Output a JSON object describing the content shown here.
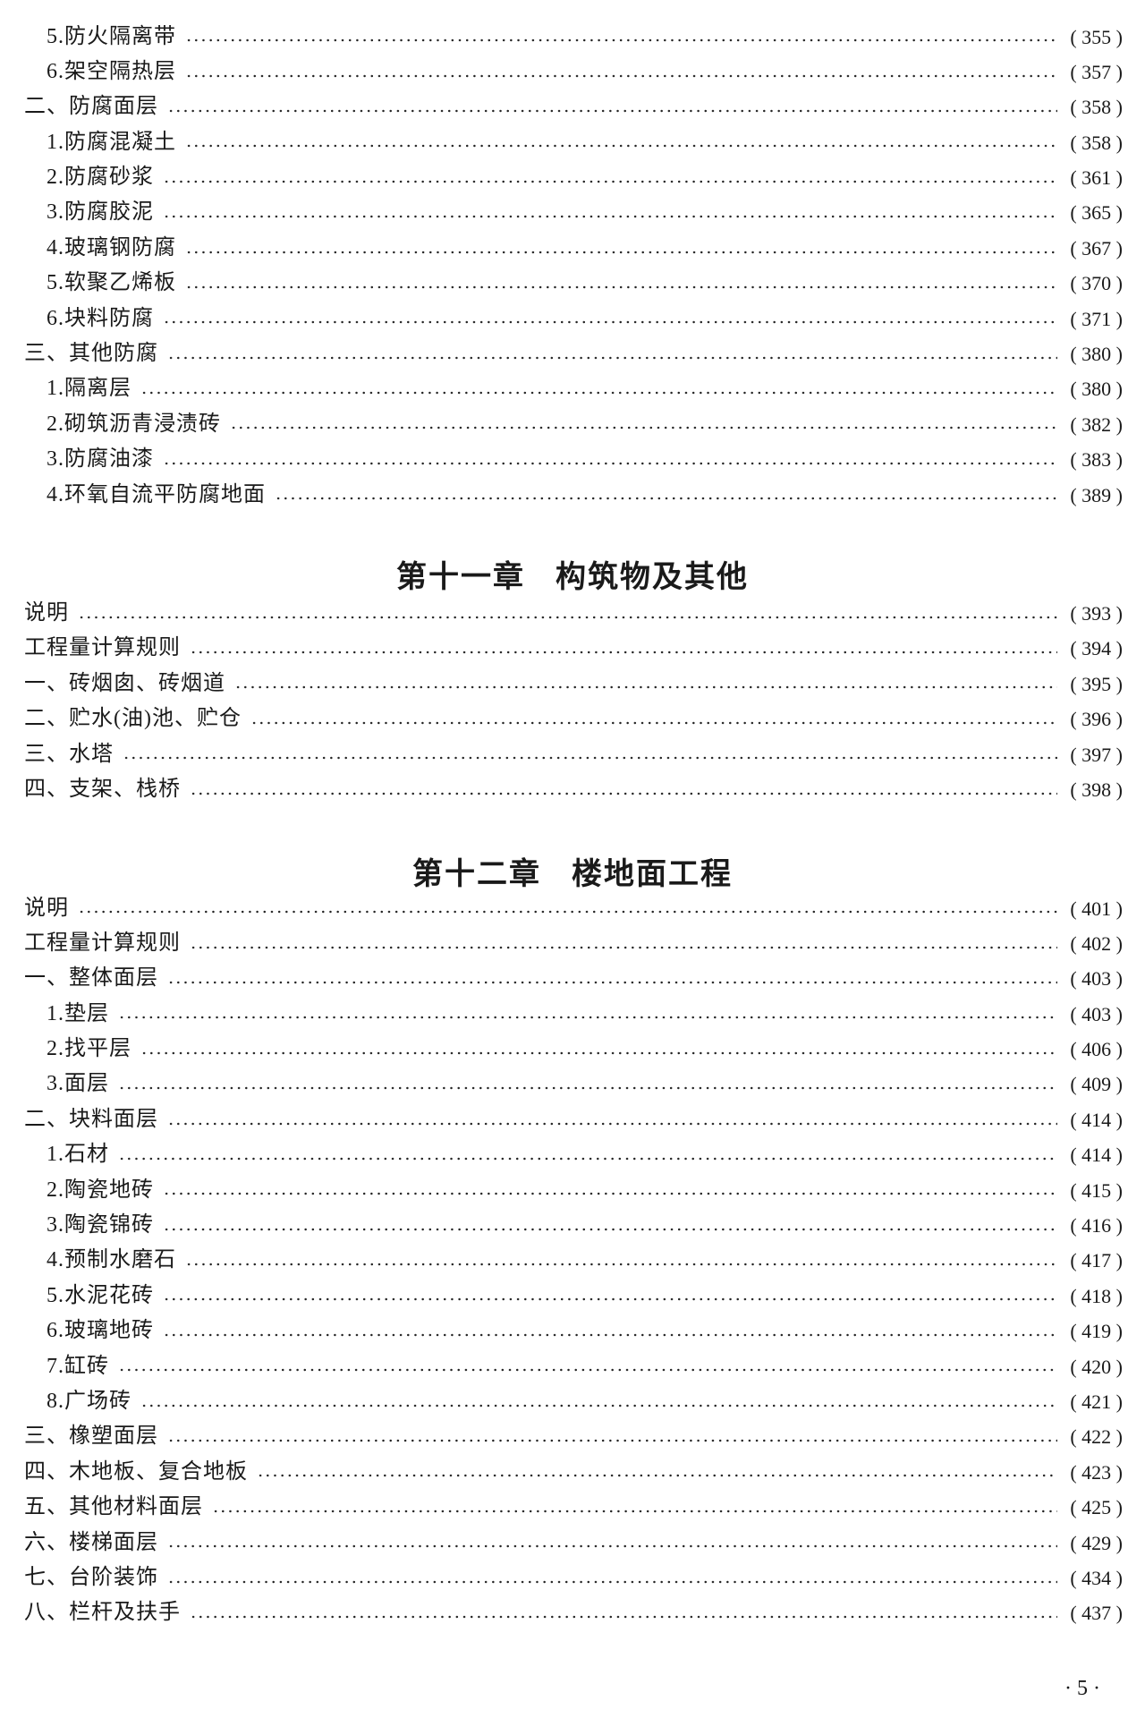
{
  "sections": [
    {
      "chapter": null,
      "entries": [
        {
          "label": "5.防火隔离带",
          "page": "( 355 )",
          "level": 2
        },
        {
          "label": "6.架空隔热层",
          "page": "( 357 )",
          "level": 2
        },
        {
          "label": "二、防腐面层",
          "page": "( 358 )",
          "level": 1
        },
        {
          "label": "1.防腐混凝土",
          "page": "( 358 )",
          "level": 2
        },
        {
          "label": "2.防腐砂浆",
          "page": "( 361 )",
          "level": 2
        },
        {
          "label": "3.防腐胶泥",
          "page": "( 365 )",
          "level": 2
        },
        {
          "label": "4.玻璃钢防腐",
          "page": "( 367 )",
          "level": 2
        },
        {
          "label": "5.软聚乙烯板",
          "page": "( 370 )",
          "level": 2
        },
        {
          "label": "6.块料防腐",
          "page": "( 371 )",
          "level": 2
        },
        {
          "label": "三、其他防腐",
          "page": "( 380 )",
          "level": 1
        },
        {
          "label": "1.隔离层",
          "page": "( 380 )",
          "level": 2
        },
        {
          "label": "2.砌筑沥青浸渍砖",
          "page": "( 382 )",
          "level": 2
        },
        {
          "label": "3.防腐油漆",
          "page": "( 383 )",
          "level": 2
        },
        {
          "label": "4.环氧自流平防腐地面",
          "page": "( 389 )",
          "level": 2
        }
      ]
    },
    {
      "chapter": {
        "number": "第十一章",
        "title": "构筑物及其他"
      },
      "entries": [
        {
          "label": "说明",
          "page": "( 393 )",
          "level": 1
        },
        {
          "label": "工程量计算规则",
          "page": "( 394 )",
          "level": 1
        },
        {
          "label": "一、砖烟囱、砖烟道",
          "page": "( 395 )",
          "level": 1
        },
        {
          "label": "二、贮水(油)池、贮仓",
          "page": "( 396 )",
          "level": 1
        },
        {
          "label": "三、水塔",
          "page": "( 397 )",
          "level": 1
        },
        {
          "label": "四、支架、栈桥",
          "page": "( 398 )",
          "level": 1
        }
      ]
    },
    {
      "chapter": {
        "number": "第十二章",
        "title": "楼地面工程"
      },
      "entries": [
        {
          "label": "说明",
          "page": "( 401 )",
          "level": 1
        },
        {
          "label": "工程量计算规则",
          "page": "( 402 )",
          "level": 1
        },
        {
          "label": "一、整体面层",
          "page": "( 403 )",
          "level": 1
        },
        {
          "label": "1.垫层",
          "page": "( 403 )",
          "level": 2
        },
        {
          "label": "2.找平层",
          "page": "( 406 )",
          "level": 2
        },
        {
          "label": "3.面层",
          "page": "( 409 )",
          "level": 2
        },
        {
          "label": "二、块料面层",
          "page": "( 414 )",
          "level": 1
        },
        {
          "label": "1.石材",
          "page": "( 414 )",
          "level": 2
        },
        {
          "label": "2.陶瓷地砖",
          "page": "( 415 )",
          "level": 2
        },
        {
          "label": "3.陶瓷锦砖",
          "page": "( 416 )",
          "level": 2
        },
        {
          "label": "4.预制水磨石",
          "page": "( 417 )",
          "level": 2
        },
        {
          "label": "5.水泥花砖",
          "page": "( 418 )",
          "level": 2
        },
        {
          "label": "6.玻璃地砖",
          "page": "( 419 )",
          "level": 2
        },
        {
          "label": "7.缸砖",
          "page": "( 420 )",
          "level": 2
        },
        {
          "label": "8.广场砖",
          "page": "( 421 )",
          "level": 2
        },
        {
          "label": "三、橡塑面层",
          "page": "( 422 )",
          "level": 1
        },
        {
          "label": "四、木地板、复合地板",
          "page": "( 423 )",
          "level": 1
        },
        {
          "label": "五、其他材料面层",
          "page": "( 425 )",
          "level": 1
        },
        {
          "label": "六、楼梯面层",
          "page": "( 429 )",
          "level": 1
        },
        {
          "label": "七、台阶装饰",
          "page": "( 434 )",
          "level": 1
        },
        {
          "label": "八、栏杆及扶手",
          "page": "( 437 )",
          "level": 1
        }
      ]
    }
  ],
  "folio": "· 5 ·"
}
